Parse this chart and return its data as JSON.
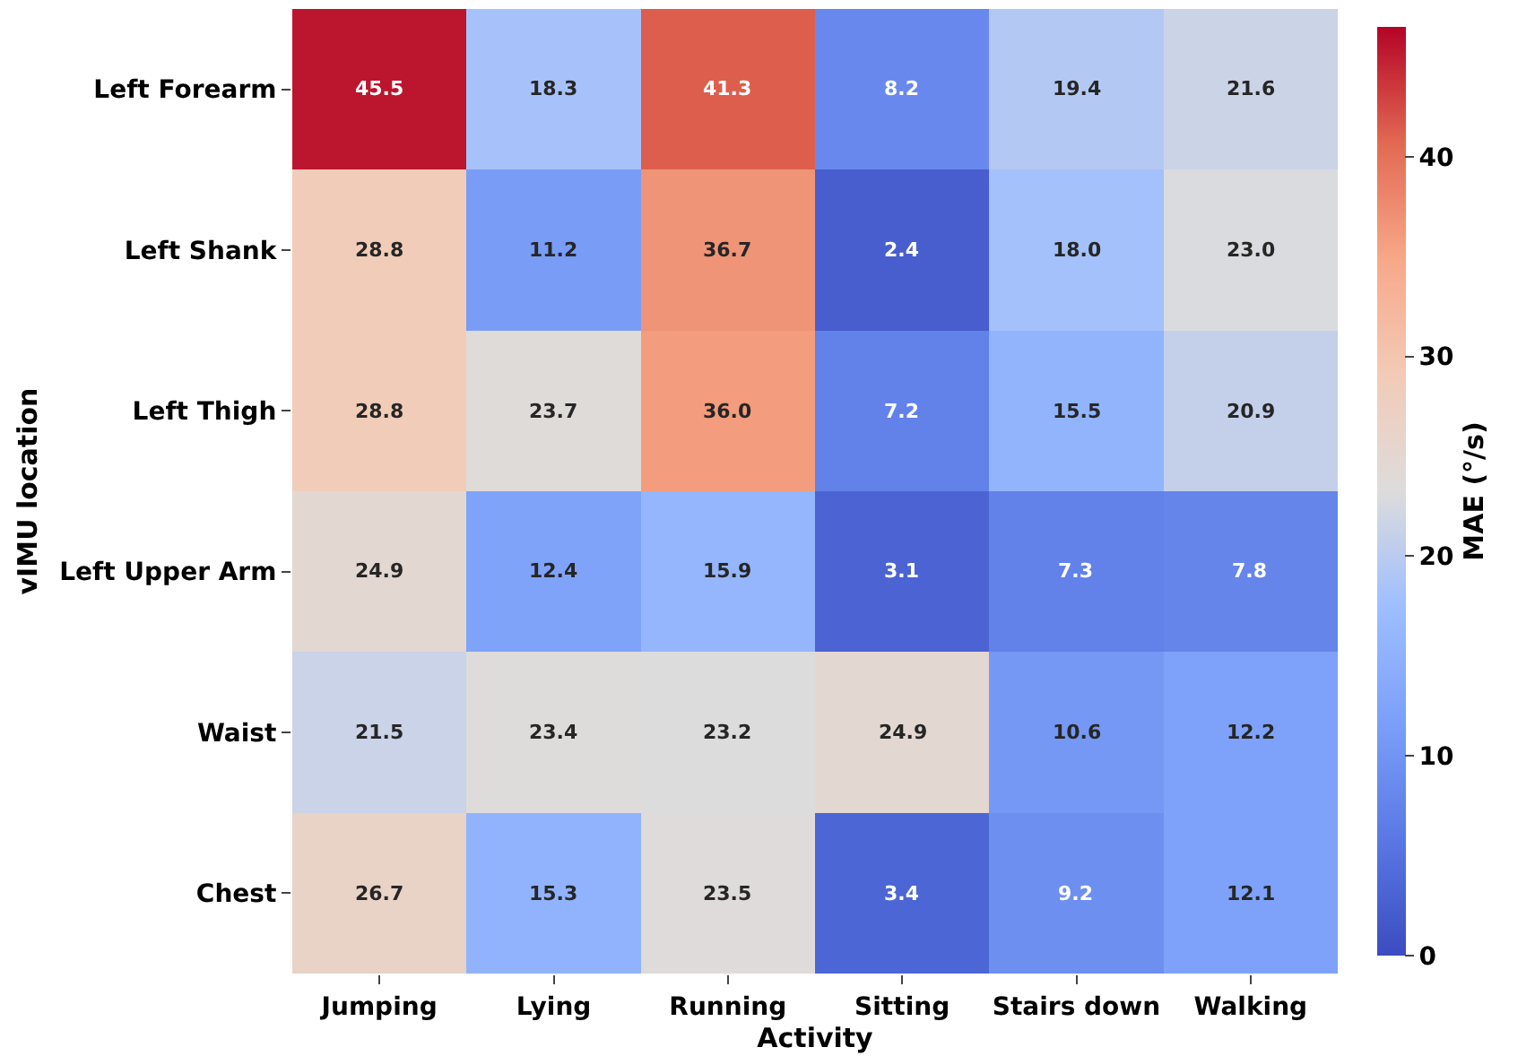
{
  "chart_data": {
    "type": "heatmap",
    "xlabel": "Activity",
    "ylabel": "vIMU location",
    "clabel": "MAE (°/s)",
    "categories": [
      "Jumping",
      "Lying",
      "Running",
      "Sitting",
      "Stairs down",
      "Walking"
    ],
    "y_categories": [
      "Left Forearm",
      "Left Shank",
      "Left Thigh",
      "Left Upper Arm",
      "Waist",
      "Chest"
    ],
    "cells": [
      [
        45.5,
        18.3,
        41.3,
        8.2,
        19.4,
        21.6
      ],
      [
        28.8,
        11.2,
        36.7,
        2.4,
        18.0,
        23.0
      ],
      [
        28.8,
        23.7,
        36.0,
        7.2,
        15.5,
        20.9
      ],
      [
        24.9,
        12.4,
        15.9,
        3.1,
        7.3,
        7.8
      ],
      [
        21.5,
        23.4,
        23.2,
        24.9,
        10.6,
        12.2
      ],
      [
        26.7,
        15.3,
        23.5,
        3.4,
        9.2,
        12.1
      ]
    ],
    "cell_labels": [
      [
        "45.5",
        "18.3",
        "41.3",
        "8.2",
        "19.4",
        "21.6"
      ],
      [
        "28.8",
        "11.2",
        "36.7",
        "2.4",
        "18.0",
        "23.0"
      ],
      [
        "28.8",
        "23.7",
        "36.0",
        "7.2",
        "15.5",
        "20.9"
      ],
      [
        "24.9",
        "12.4",
        "15.9",
        "3.1",
        "7.3",
        "7.8"
      ],
      [
        "21.5",
        "23.4",
        "23.2",
        "24.9",
        "10.6",
        "12.2"
      ],
      [
        "26.7",
        "15.3",
        "23.5",
        "3.4",
        "9.2",
        "12.1"
      ]
    ],
    "clim": [
      0,
      46.5
    ],
    "cticks": [
      0,
      10,
      20,
      30,
      40
    ],
    "data_labels": true
  }
}
